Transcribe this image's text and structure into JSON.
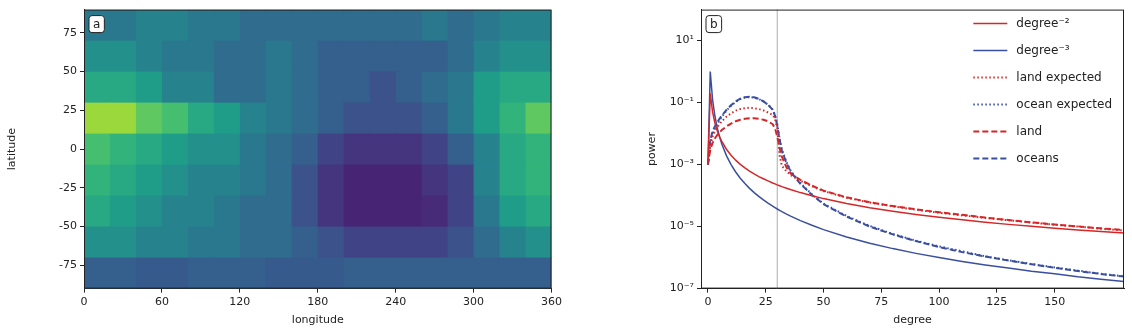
{
  "chart_data": [
    {
      "type": "heatmap",
      "panel": "a",
      "x_label": "longitude",
      "y_label": "latitude",
      "xlim": [
        0,
        360
      ],
      "xticks": [
        0,
        60,
        120,
        180,
        240,
        300,
        360
      ],
      "ylim": [
        -90,
        90
      ],
      "yticks": [
        -75,
        -50,
        -25,
        0,
        25,
        50,
        75
      ],
      "grid": false,
      "zlim": [
        0,
        1
      ],
      "lon_edges": [
        0,
        20,
        40,
        60,
        80,
        100,
        120,
        140,
        160,
        180,
        200,
        220,
        240,
        260,
        280,
        300,
        320,
        340,
        360
      ],
      "lat_edges": [
        90,
        70,
        50,
        30,
        10,
        -10,
        -30,
        -50,
        -70,
        -90
      ],
      "cells": [
        [
          0.4,
          0.4,
          0.45,
          0.45,
          0.4,
          0.4,
          0.35,
          0.35,
          0.35,
          0.35,
          0.35,
          0.35,
          0.35,
          0.4,
          0.35,
          0.4,
          0.45,
          0.45
        ],
        [
          0.5,
          0.5,
          0.45,
          0.4,
          0.4,
          0.35,
          0.35,
          0.4,
          0.35,
          0.3,
          0.3,
          0.3,
          0.3,
          0.3,
          0.35,
          0.45,
          0.5,
          0.5
        ],
        [
          0.6,
          0.6,
          0.55,
          0.45,
          0.45,
          0.35,
          0.35,
          0.4,
          0.35,
          0.3,
          0.3,
          0.25,
          0.3,
          0.35,
          0.4,
          0.55,
          0.6,
          0.6
        ],
        [
          0.85,
          0.85,
          0.75,
          0.7,
          0.6,
          0.55,
          0.45,
          0.4,
          0.35,
          0.3,
          0.25,
          0.25,
          0.25,
          0.3,
          0.4,
          0.55,
          0.65,
          0.75
        ],
        [
          0.7,
          0.65,
          0.6,
          0.55,
          0.5,
          0.5,
          0.4,
          0.35,
          0.3,
          0.2,
          0.15,
          0.15,
          0.15,
          0.2,
          0.3,
          0.45,
          0.6,
          0.65
        ],
        [
          0.65,
          0.6,
          0.55,
          0.5,
          0.45,
          0.45,
          0.4,
          0.35,
          0.25,
          0.15,
          0.1,
          0.1,
          0.1,
          0.15,
          0.2,
          0.45,
          0.6,
          0.65
        ],
        [
          0.6,
          0.55,
          0.5,
          0.45,
          0.45,
          0.4,
          0.35,
          0.35,
          0.25,
          0.15,
          0.1,
          0.1,
          0.1,
          0.12,
          0.2,
          0.4,
          0.55,
          0.6
        ],
        [
          0.5,
          0.5,
          0.45,
          0.45,
          0.4,
          0.4,
          0.35,
          0.35,
          0.3,
          0.25,
          0.2,
          0.2,
          0.2,
          0.2,
          0.25,
          0.35,
          0.45,
          0.5
        ],
        [
          0.3,
          0.3,
          0.28,
          0.28,
          0.3,
          0.3,
          0.3,
          0.28,
          0.28,
          0.28,
          0.3,
          0.3,
          0.3,
          0.3,
          0.3,
          0.3,
          0.3,
          0.3
        ]
      ]
    },
    {
      "type": "line",
      "panel": "b",
      "x_label": "degree",
      "y_label": "power",
      "log": "y",
      "grid": false,
      "legend": "upper right",
      "xlim": [
        -3,
        180
      ],
      "xticks": [
        0,
        25,
        50,
        75,
        100,
        125,
        150
      ],
      "ylim": [
        1e-07,
        100
      ],
      "yticks": [
        {
          "value": 1e-07,
          "label": "10⁻⁷"
        },
        {
          "value": 1e-05,
          "label": "10⁻⁵"
        },
        {
          "value": 0.001,
          "label": "10⁻³"
        },
        {
          "value": 0.1,
          "label": "10⁻¹"
        },
        {
          "value": 10,
          "label": "10¹"
        }
      ],
      "vline": 30,
      "x": [
        0,
        1,
        2,
        3,
        4,
        5,
        6,
        8,
        10,
        12,
        14,
        16,
        18,
        20,
        22,
        24,
        26,
        28,
        29,
        30,
        31,
        32,
        34,
        36,
        40,
        45,
        50,
        60,
        70,
        80,
        90,
        100,
        110,
        120,
        130,
        140,
        150,
        160,
        170,
        180
      ],
      "series": [
        {
          "name": "degree⁻²",
          "color": "#d62728",
          "line_style": "solid",
          "values": [
            0.001,
            0.2,
            0.05,
            0.0222,
            0.0125,
            0.008,
            0.00556,
            0.00313,
            0.002,
            0.00139,
            0.00102,
            0.00078,
            0.00062,
            0.0005,
            0.00041,
            0.00035,
            0.0003,
            0.000255,
            0.000238,
            0.000222,
            0.000208,
            0.000195,
            0.000173,
            0.000154,
            0.000125,
            9.88e-05,
            8e-05,
            5.56e-05,
            4.08e-05,
            3.13e-05,
            2.47e-05,
            2e-05,
            1.65e-05,
            1.39e-05,
            1.18e-05,
            1.02e-05,
            8.9e-06,
            7.8e-06,
            6.9e-06,
            6.2e-06
          ]
        },
        {
          "name": "degree⁻³",
          "color": "#3a4fa0",
          "line_style": "solid",
          "values": [
            0.001,
            1,
            0.125,
            0.037,
            0.0156,
            0.008,
            0.00463,
            0.00195,
            0.001,
            0.000579,
            0.000364,
            0.000244,
            0.000171,
            0.000125,
            9.39e-05,
            7.23e-05,
            5.69e-05,
            4.56e-05,
            4.1e-05,
            3.7e-05,
            3.36e-05,
            3.05e-05,
            2.54e-05,
            2.14e-05,
            1.56e-05,
            1.1e-05,
            8e-06,
            4.63e-06,
            2.92e-06,
            1.95e-06,
            1.37e-06,
            1e-06,
            7.5e-07,
            5.8e-07,
            4.6e-07,
            3.6e-07,
            3e-07,
            2.4e-07,
            2e-07,
            1.7e-07
          ]
        },
        {
          "name": "land expected",
          "color": "#d62728",
          "line_style": "dotted",
          "values": [
            0.001,
            0.004,
            0.008,
            0.012,
            0.016,
            0.02,
            0.025,
            0.035,
            0.045,
            0.055,
            0.062,
            0.066,
            0.068,
            0.066,
            0.062,
            0.056,
            0.048,
            0.04,
            0.03,
            0.015,
            0.002,
            0.0009,
            0.0006,
            0.00045,
            0.0003,
            0.0002,
            0.00014,
            8.5e-05,
            6e-05,
            4.5e-05,
            3.5e-05,
            2.8e-05,
            2.3e-05,
            1.9e-05,
            1.6e-05,
            1.35e-05,
            1.15e-05,
            1e-05,
            8.5e-06,
            7.5e-06
          ]
        },
        {
          "name": "ocean expected",
          "color": "#3a4fa0",
          "line_style": "dotted",
          "values": [
            0.001,
            0.005,
            0.01,
            0.015,
            0.02,
            0.027,
            0.035,
            0.055,
            0.08,
            0.105,
            0.13,
            0.145,
            0.15,
            0.145,
            0.13,
            0.11,
            0.085,
            0.06,
            0.04,
            0.02,
            0.007,
            0.003,
            0.0012,
            0.0006,
            0.00025,
            0.00011,
            5.5e-05,
            2.2e-05,
            1.05e-05,
            5.8e-06,
            3.5e-06,
            2.3e-06,
            1.6e-06,
            1.1e-06,
            8.2e-07,
            6.2e-07,
            4.8e-07,
            3.8e-07,
            3e-07,
            2.5e-07
          ]
        },
        {
          "name": "land",
          "color": "#d62728",
          "line_style": "dashed",
          "values": [
            0.001,
            0.003,
            0.005,
            0.007,
            0.009,
            0.011,
            0.013,
            0.017,
            0.021,
            0.025,
            0.028,
            0.03,
            0.031,
            0.031,
            0.03,
            0.028,
            0.025,
            0.02,
            0.015,
            0.008,
            0.0035,
            0.0018,
            0.0008,
            0.0005,
            0.00032,
            0.00021,
            0.000145,
            8.8e-05,
            6.1e-05,
            4.6e-05,
            3.6e-05,
            2.9e-05,
            2.4e-05,
            1.95e-05,
            1.63e-05,
            1.37e-05,
            1.17e-05,
            1.02e-05,
            8.8e-06,
            7.7e-06
          ]
        },
        {
          "name": "oceans",
          "color": "#3a4fa0",
          "line_style": "dashed",
          "values": [
            0.001,
            0.006,
            0.012,
            0.017,
            0.023,
            0.03,
            0.038,
            0.058,
            0.082,
            0.11,
            0.135,
            0.15,
            0.155,
            0.148,
            0.132,
            0.11,
            0.086,
            0.058,
            0.038,
            0.018,
            0.0065,
            0.0028,
            0.0011,
            0.00056,
            0.00024,
            0.000105,
            5.3e-05,
            2.1e-05,
            1e-05,
            5.6e-06,
            3.4e-06,
            2.2e-06,
            1.5e-06,
            1.08e-06,
            8e-07,
            6.1e-07,
            4.7e-07,
            3.7e-07,
            2.95e-07,
            2.45e-07
          ]
        }
      ]
    }
  ]
}
